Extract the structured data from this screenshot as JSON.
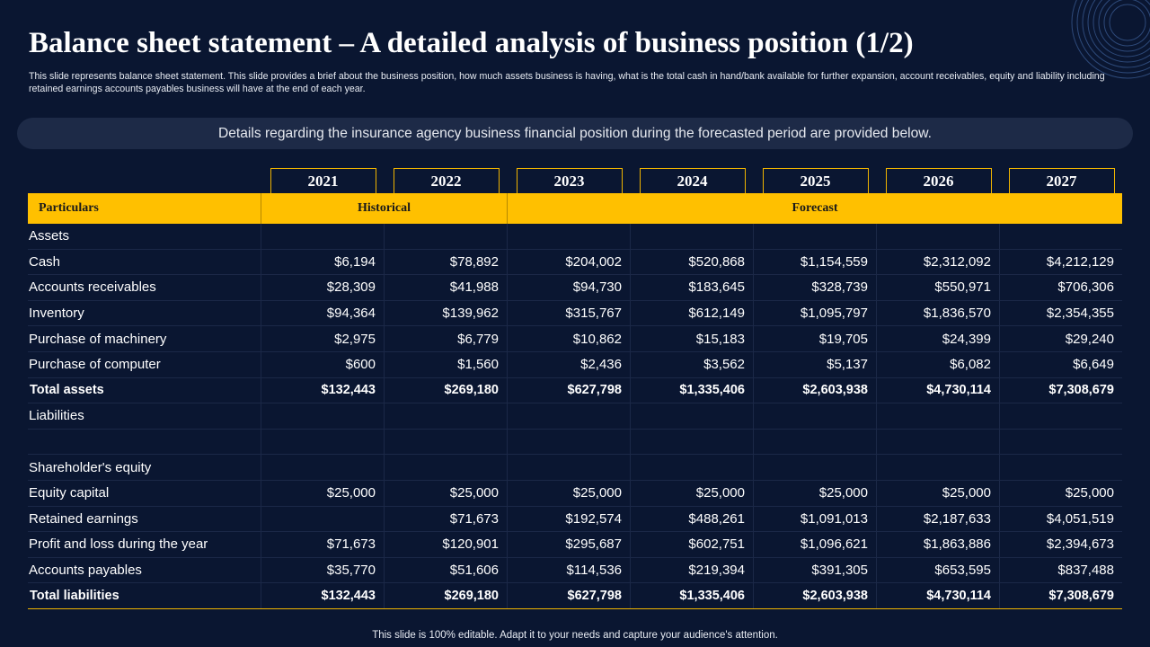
{
  "title": "Balance sheet statement – A detailed analysis of business position (1/2)",
  "subtitle": "This slide represents balance sheet statement. This slide provides a brief about the business position, how much assets business is having, what is the total cash in hand/bank available for further expansion, account receivables, equity and liability including retained earnings accounts payables business will have at the end of each year.",
  "banner": "Details regarding the insurance agency business financial position during the forecasted period are provided below.",
  "years": [
    "2021",
    "2022",
    "2023",
    "2024",
    "2025",
    "2026",
    "2027"
  ],
  "header": {
    "particulars": "Particulars",
    "historical": "Historical",
    "forecast": "Forecast"
  },
  "rows": [
    {
      "label": "Assets",
      "values": [
        "",
        "",
        "",
        "",
        "",
        "",
        ""
      ],
      "total": false
    },
    {
      "label": "Cash",
      "values": [
        "$6,194",
        "$78,892",
        "$204,002",
        "$520,868",
        "$1,154,559",
        "$2,312,092",
        "$4,212,129"
      ],
      "total": false
    },
    {
      "label": "Accounts receivables",
      "values": [
        "$28,309",
        "$41,988",
        "$94,730",
        "$183,645",
        "$328,739",
        "$550,971",
        "$706,306"
      ],
      "total": false
    },
    {
      "label": "Inventory",
      "values": [
        "$94,364",
        "$139,962",
        "$315,767",
        "$612,149",
        "$1,095,797",
        "$1,836,570",
        "$2,354,355"
      ],
      "total": false
    },
    {
      "label": "Purchase of machinery",
      "values": [
        "$2,975",
        "$6,779",
        "$10,862",
        "$15,183",
        "$19,705",
        "$24,399",
        "$29,240"
      ],
      "total": false
    },
    {
      "label": "Purchase of computer",
      "values": [
        "$600",
        "$1,560",
        "$2,436",
        "$3,562",
        "$5,137",
        "$6,082",
        "$6,649"
      ],
      "total": false
    },
    {
      "label": "Total assets",
      "values": [
        "$132,443",
        "$269,180",
        "$627,798",
        "$1,335,406",
        "$2,603,938",
        "$4,730,114",
        "$7,308,679"
      ],
      "total": true
    },
    {
      "label": "Liabilities",
      "values": [
        "",
        "",
        "",
        "",
        "",
        "",
        ""
      ],
      "total": false
    },
    {
      "label": "",
      "values": [
        "",
        "",
        "",
        "",
        "",
        "",
        ""
      ],
      "total": false
    },
    {
      "label": "Shareholder's equity",
      "values": [
        "",
        "",
        "",
        "",
        "",
        "",
        ""
      ],
      "total": false
    },
    {
      "label": "Equity capital",
      "values": [
        "$25,000",
        "$25,000",
        "$25,000",
        "$25,000",
        "$25,000",
        "$25,000",
        "$25,000"
      ],
      "total": false
    },
    {
      "label": "Retained earnings",
      "values": [
        "",
        "$71,673",
        "$192,574",
        "$488,261",
        "$1,091,013",
        "$2,187,633",
        "$4,051,519"
      ],
      "total": false
    },
    {
      "label": "Profit and loss during the year",
      "values": [
        "$71,673",
        "$120,901",
        "$295,687",
        "$602,751",
        "$1,096,621",
        "$1,863,886",
        "$2,394,673"
      ],
      "total": false
    },
    {
      "label": "Accounts payables",
      "values": [
        "$35,770",
        "$51,606",
        "$114,536",
        "$219,394",
        "$391,305",
        "$653,595",
        "$837,488"
      ],
      "total": false
    },
    {
      "label": "Total liabilities",
      "values": [
        "$132,443",
        "$269,180",
        "$627,798",
        "$1,335,406",
        "$2,603,938",
        "$4,730,114",
        "$7,308,679"
      ],
      "total": true
    }
  ],
  "footer": "This slide is 100% editable. Adapt it to your needs and capture your audience's attention.",
  "colors": {
    "background": "#0a1631",
    "accent": "#ffc000",
    "banner": "#1d2a47"
  },
  "decoration": "concentric-circles-icon"
}
